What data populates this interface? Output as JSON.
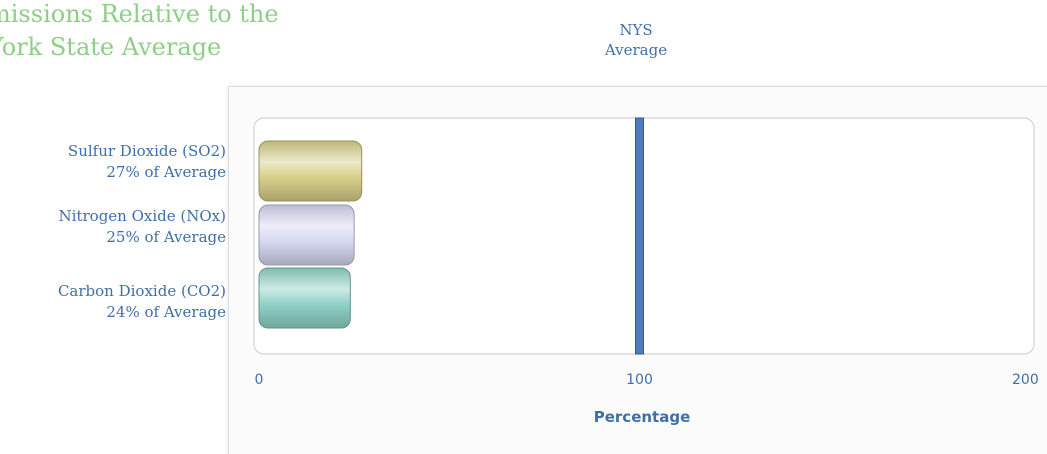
{
  "chart_data": {
    "type": "bar",
    "orientation": "horizontal",
    "title_lines": [
      "missions Relative to the",
      "York State Average"
    ],
    "reference_label_lines": [
      "NYS",
      "Average"
    ],
    "reference_value": 100,
    "categories": [
      {
        "name": "Sulfur Dioxide (SO2)",
        "sublabel": "27%  of Average",
        "value": 27,
        "color": "#d8d08a"
      },
      {
        "name": "Nitrogen Oxide (NOx)",
        "sublabel": "25%  of Average",
        "value": 25,
        "color": "#d6d9f2"
      },
      {
        "name": "Carbon Dioxide (CO2)",
        "sublabel": "24%  of Average",
        "value": 24,
        "color": "#8fd3c8"
      }
    ],
    "xlim": [
      0,
      200
    ],
    "xticks": [
      "0",
      "100",
      "200"
    ],
    "xlabel": "Percentage",
    "grid": false
  },
  "colors": {
    "title": "#8ecf86",
    "label_text": "#3f6fa9",
    "reference_line": "#4f7dbc",
    "plot_border": "#d4d4d4"
  }
}
